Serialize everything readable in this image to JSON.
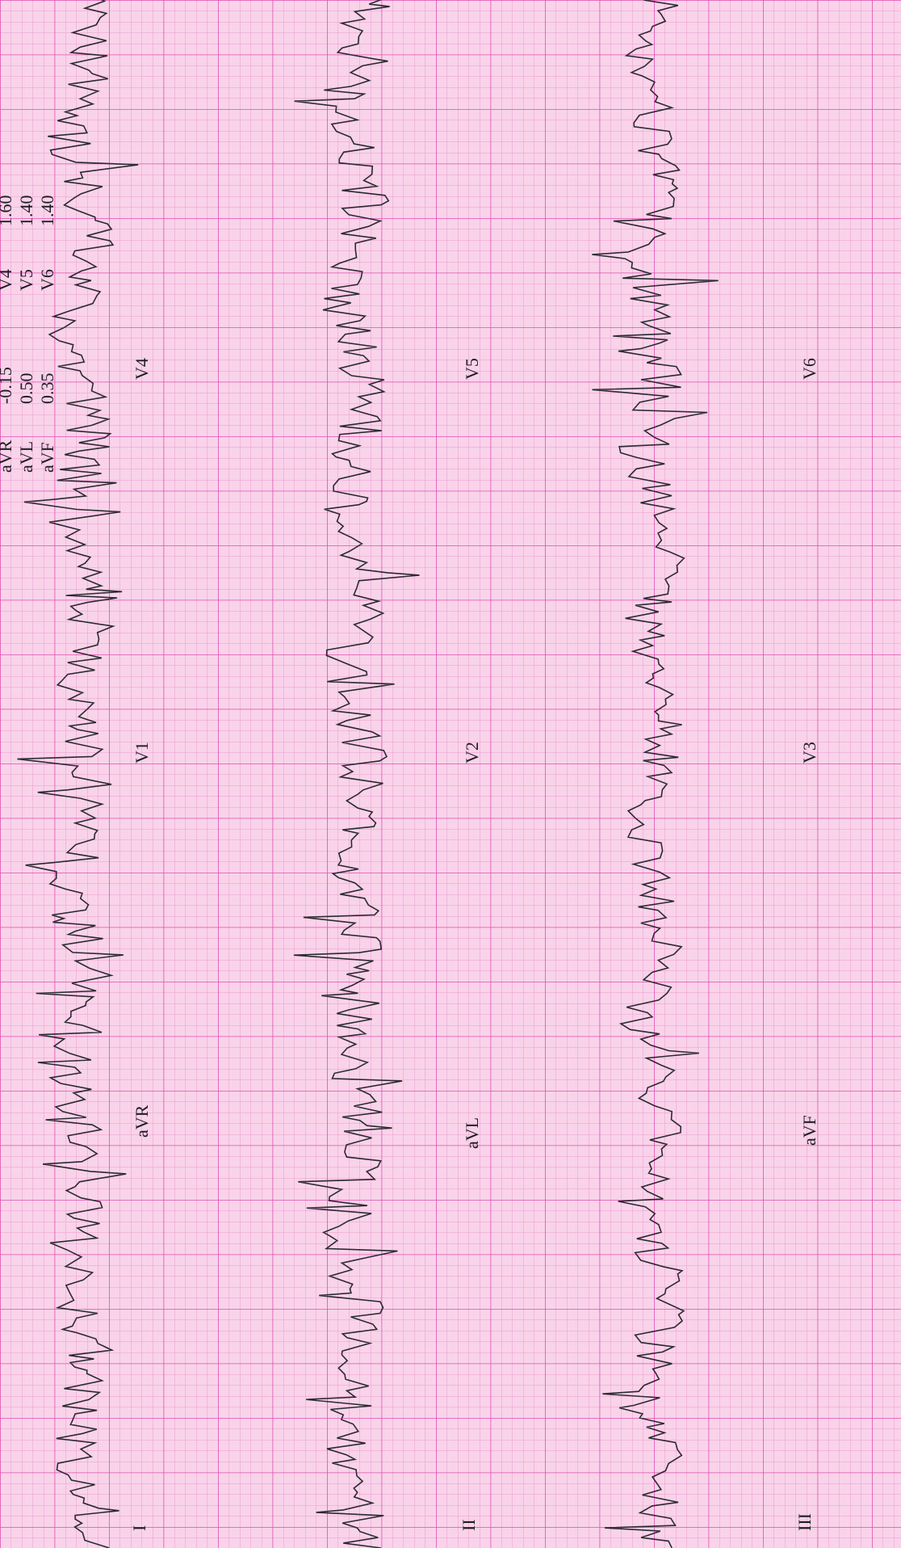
{
  "leads": [
    {
      "id": "I",
      "label": "I"
    },
    {
      "id": "aVR",
      "label": "aVR"
    },
    {
      "id": "V1",
      "label": "V1"
    },
    {
      "id": "V4",
      "label": "V4"
    },
    {
      "id": "II",
      "label": "II"
    },
    {
      "id": "aVL",
      "label": "aVL"
    },
    {
      "id": "V2",
      "label": "V2"
    },
    {
      "id": "V5",
      "label": "V5"
    },
    {
      "id": "III",
      "label": "III"
    },
    {
      "id": "aVF",
      "label": "aVF"
    },
    {
      "id": "V3",
      "label": "V3"
    },
    {
      "id": "V6",
      "label": "V6"
    }
  ],
  "measurements": [
    {
      "lead": "aVR",
      "value": "-0.15"
    },
    {
      "lead": "aVL",
      "value": "0.50"
    },
    {
      "lead": "aVF",
      "value": "0.35"
    },
    {
      "lead": "V4",
      "value": "1.60"
    },
    {
      "lead": "V5",
      "value": "1.40"
    },
    {
      "lead": "V6",
      "value": "1.40"
    }
  ],
  "colors": {
    "paper": "#f9d3ea",
    "grid_minor": "#ec9bcf",
    "grid_major": "#df4fb0",
    "trace": "#2a2a30"
  }
}
